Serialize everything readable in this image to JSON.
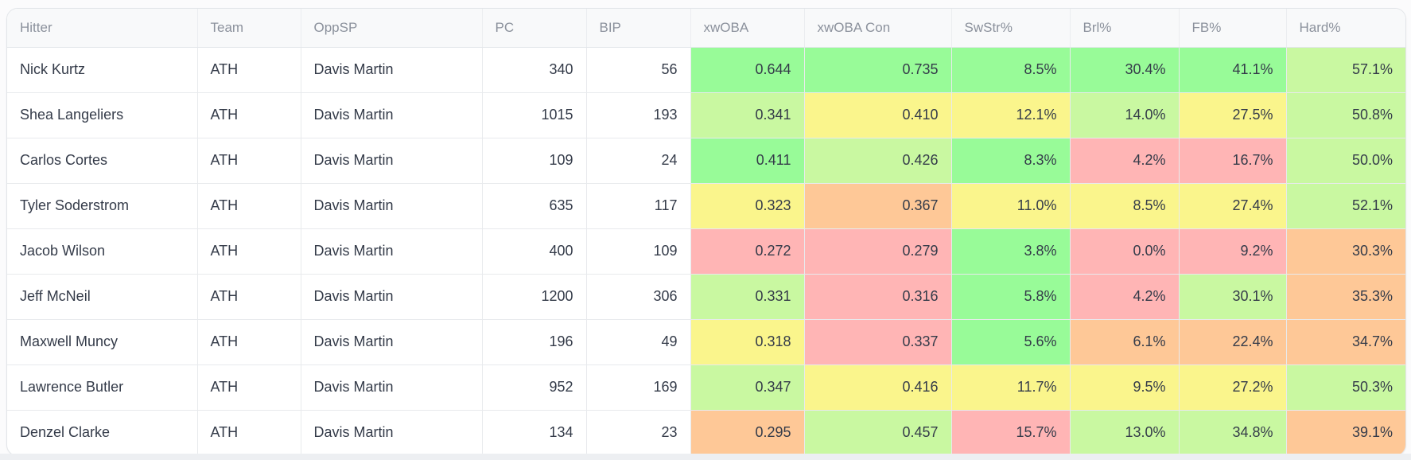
{
  "heat_colors": {
    "green": "#98fb98",
    "lightgreen": "#c9f8a1",
    "yellow": "#faf58c",
    "orange": "#fec897",
    "pink": "#ffb5b5"
  },
  "table": {
    "columns": [
      {
        "key": "hitter",
        "label": "Hitter",
        "type": "text"
      },
      {
        "key": "team",
        "label": "Team",
        "type": "text"
      },
      {
        "key": "oppsp",
        "label": "OppSP",
        "type": "text"
      },
      {
        "key": "pc",
        "label": "PC",
        "type": "number"
      },
      {
        "key": "bip",
        "label": "BIP",
        "type": "number"
      },
      {
        "key": "xwoba",
        "label": "xwOBA",
        "type": "stat"
      },
      {
        "key": "xwoba-con",
        "label": "xwOBA Con",
        "type": "stat"
      },
      {
        "key": "swstr",
        "label": "SwStr%",
        "type": "stat"
      },
      {
        "key": "brl",
        "label": "Brl%",
        "type": "stat"
      },
      {
        "key": "fb",
        "label": "FB%",
        "type": "stat"
      },
      {
        "key": "hard",
        "label": "Hard%",
        "type": "stat"
      }
    ],
    "rows": [
      {
        "hitter": "Nick Kurtz",
        "team": "ATH",
        "oppsp": "Davis Martin",
        "pc": "340",
        "bip": "56",
        "stats": [
          {
            "value": "0.644",
            "color": "green"
          },
          {
            "value": "0.735",
            "color": "green"
          },
          {
            "value": "8.5%",
            "color": "green"
          },
          {
            "value": "30.4%",
            "color": "green"
          },
          {
            "value": "41.1%",
            "color": "green"
          },
          {
            "value": "57.1%",
            "color": "lightgreen"
          }
        ]
      },
      {
        "hitter": "Shea Langeliers",
        "team": "ATH",
        "oppsp": "Davis Martin",
        "pc": "1015",
        "bip": "193",
        "stats": [
          {
            "value": "0.341",
            "color": "lightgreen"
          },
          {
            "value": "0.410",
            "color": "yellow"
          },
          {
            "value": "12.1%",
            "color": "yellow"
          },
          {
            "value": "14.0%",
            "color": "lightgreen"
          },
          {
            "value": "27.5%",
            "color": "yellow"
          },
          {
            "value": "50.8%",
            "color": "lightgreen"
          }
        ]
      },
      {
        "hitter": "Carlos Cortes",
        "team": "ATH",
        "oppsp": "Davis Martin",
        "pc": "109",
        "bip": "24",
        "stats": [
          {
            "value": "0.411",
            "color": "green"
          },
          {
            "value": "0.426",
            "color": "lightgreen"
          },
          {
            "value": "8.3%",
            "color": "green"
          },
          {
            "value": "4.2%",
            "color": "pink"
          },
          {
            "value": "16.7%",
            "color": "pink"
          },
          {
            "value": "50.0%",
            "color": "lightgreen"
          }
        ]
      },
      {
        "hitter": "Tyler Soderstrom",
        "team": "ATH",
        "oppsp": "Davis Martin",
        "pc": "635",
        "bip": "117",
        "stats": [
          {
            "value": "0.323",
            "color": "yellow"
          },
          {
            "value": "0.367",
            "color": "orange"
          },
          {
            "value": "11.0%",
            "color": "yellow"
          },
          {
            "value": "8.5%",
            "color": "yellow"
          },
          {
            "value": "27.4%",
            "color": "yellow"
          },
          {
            "value": "52.1%",
            "color": "lightgreen"
          }
        ]
      },
      {
        "hitter": "Jacob Wilson",
        "team": "ATH",
        "oppsp": "Davis Martin",
        "pc": "400",
        "bip": "109",
        "stats": [
          {
            "value": "0.272",
            "color": "pink"
          },
          {
            "value": "0.279",
            "color": "pink"
          },
          {
            "value": "3.8%",
            "color": "green"
          },
          {
            "value": "0.0%",
            "color": "pink"
          },
          {
            "value": "9.2%",
            "color": "pink"
          },
          {
            "value": "30.3%",
            "color": "orange"
          }
        ]
      },
      {
        "hitter": "Jeff McNeil",
        "team": "ATH",
        "oppsp": "Davis Martin",
        "pc": "1200",
        "bip": "306",
        "stats": [
          {
            "value": "0.331",
            "color": "lightgreen"
          },
          {
            "value": "0.316",
            "color": "pink"
          },
          {
            "value": "5.8%",
            "color": "green"
          },
          {
            "value": "4.2%",
            "color": "pink"
          },
          {
            "value": "30.1%",
            "color": "lightgreen"
          },
          {
            "value": "35.3%",
            "color": "orange"
          }
        ]
      },
      {
        "hitter": "Maxwell Muncy",
        "team": "ATH",
        "oppsp": "Davis Martin",
        "pc": "196",
        "bip": "49",
        "stats": [
          {
            "value": "0.318",
            "color": "yellow"
          },
          {
            "value": "0.337",
            "color": "pink"
          },
          {
            "value": "5.6%",
            "color": "green"
          },
          {
            "value": "6.1%",
            "color": "orange"
          },
          {
            "value": "22.4%",
            "color": "orange"
          },
          {
            "value": "34.7%",
            "color": "orange"
          }
        ]
      },
      {
        "hitter": "Lawrence Butler",
        "team": "ATH",
        "oppsp": "Davis Martin",
        "pc": "952",
        "bip": "169",
        "stats": [
          {
            "value": "0.347",
            "color": "lightgreen"
          },
          {
            "value": "0.416",
            "color": "yellow"
          },
          {
            "value": "11.7%",
            "color": "yellow"
          },
          {
            "value": "9.5%",
            "color": "yellow"
          },
          {
            "value": "27.2%",
            "color": "yellow"
          },
          {
            "value": "50.3%",
            "color": "lightgreen"
          }
        ]
      },
      {
        "hitter": "Denzel Clarke",
        "team": "ATH",
        "oppsp": "Davis Martin",
        "pc": "134",
        "bip": "23",
        "stats": [
          {
            "value": "0.295",
            "color": "orange"
          },
          {
            "value": "0.457",
            "color": "lightgreen"
          },
          {
            "value": "15.7%",
            "color": "pink"
          },
          {
            "value": "13.0%",
            "color": "lightgreen"
          },
          {
            "value": "34.8%",
            "color": "lightgreen"
          },
          {
            "value": "39.1%",
            "color": "orange"
          }
        ]
      }
    ]
  }
}
